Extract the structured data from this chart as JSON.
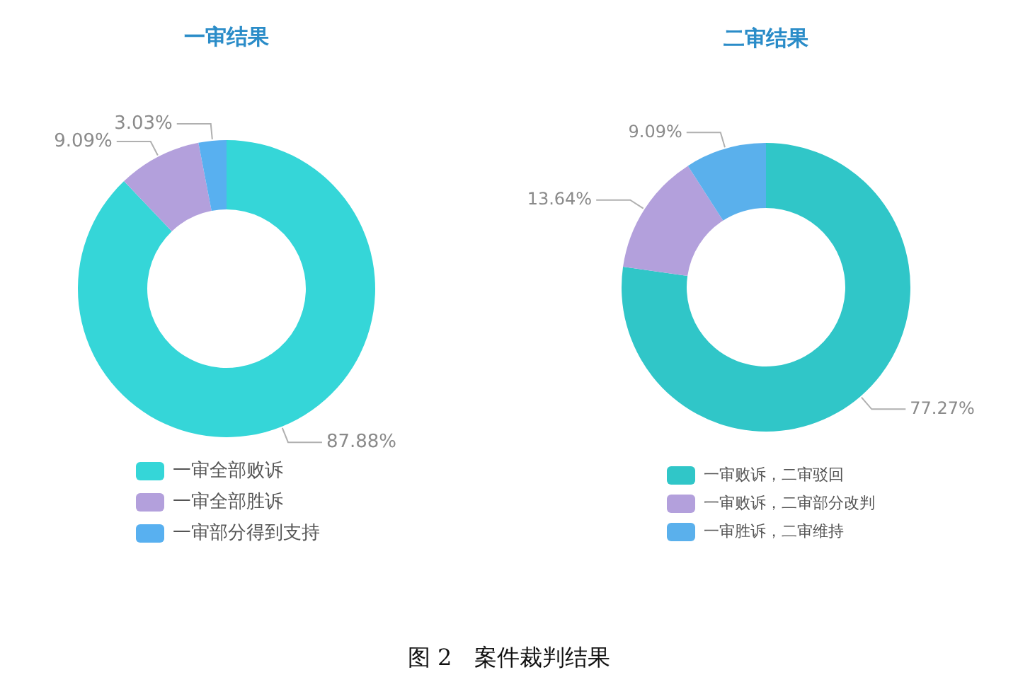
{
  "chart_data": [
    {
      "type": "donut",
      "title": "一审结果",
      "categories": [
        "一审全部败诉",
        "一审全部胜诉",
        "一审部分得到支持"
      ],
      "values": [
        87.88,
        9.09,
        3.03
      ],
      "colors": [
        "#35d6d8",
        "#b3a0dc",
        "#58b0f0"
      ],
      "value_labels": [
        "87.88%",
        "9.09%",
        "3.03%"
      ],
      "legend": "bottom",
      "annotations": [
        "图 2　案件裁判结果"
      ]
    },
    {
      "type": "donut",
      "title": "二审结果",
      "categories": [
        "一审败诉，二审驳回",
        "一审败诉，二审部分改判",
        "一审胜诉，二审维持"
      ],
      "values": [
        77.27,
        13.64,
        9.09
      ],
      "colors": [
        "#30c6c8",
        "#b3a0dc",
        "#5ab0ec"
      ],
      "value_labels": [
        "77.27%",
        "13.64%",
        "9.09%"
      ],
      "legend": "bottom"
    }
  ]
}
